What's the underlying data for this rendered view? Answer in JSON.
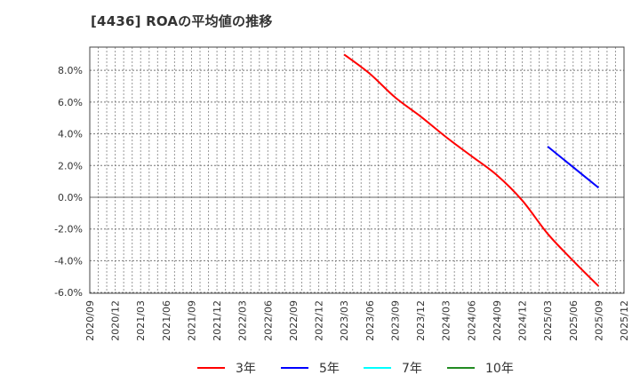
{
  "title": "[4436]  ROAの平均値の推移",
  "chart_data": {
    "type": "line",
    "title": "[4436] ROAの平均値の推移",
    "xlabel": "",
    "ylabel": "",
    "ylim": [
      -6.0,
      9.5
    ],
    "yticks": [
      "8.0%",
      "6.0%",
      "4.0%",
      "2.0%",
      "0.0%",
      "-2.0%",
      "-4.0%",
      "-6.0%"
    ],
    "ytick_values": [
      8,
      6,
      4,
      2,
      0,
      -2,
      -4,
      -6
    ],
    "x_tick_labels": [
      "2020/09",
      "2020/12",
      "2021/03",
      "2021/06",
      "2021/09",
      "2021/12",
      "2022/03",
      "2022/06",
      "2022/09",
      "2022/12",
      "2023/03",
      "2023/06",
      "2023/09",
      "2023/12",
      "2024/03",
      "2024/06",
      "2024/09",
      "2024/12",
      "2025/03",
      "2025/06",
      "2025/09",
      "2025/12"
    ],
    "grid": true,
    "legend_position": "bottom",
    "series": [
      {
        "name": "3年",
        "color": "#ff0000",
        "x": [
          "2023/03",
          "2023/06",
          "2023/09",
          "2023/12",
          "2024/03",
          "2024/06",
          "2024/09",
          "2024/12",
          "2025/03",
          "2025/06",
          "2025/09"
        ],
        "values": [
          9.0,
          7.8,
          6.3,
          5.1,
          3.8,
          2.6,
          1.4,
          -0.2,
          -2.3,
          -4.0,
          -5.6
        ]
      },
      {
        "name": "5年",
        "color": "#0000ff",
        "x": [
          "2025/03",
          "2025/06",
          "2025/09"
        ],
        "values": [
          3.2,
          1.9,
          0.6
        ]
      },
      {
        "name": "7年",
        "color": "#00ffff",
        "x": [],
        "values": []
      },
      {
        "name": "10年",
        "color": "#228b22",
        "x": [],
        "values": []
      }
    ]
  },
  "legend": [
    {
      "label": "3年",
      "color": "#ff0000"
    },
    {
      "label": "5年",
      "color": "#0000ff"
    },
    {
      "label": "7年",
      "color": "#00ffff"
    },
    {
      "label": "10年",
      "color": "#228b22"
    }
  ]
}
